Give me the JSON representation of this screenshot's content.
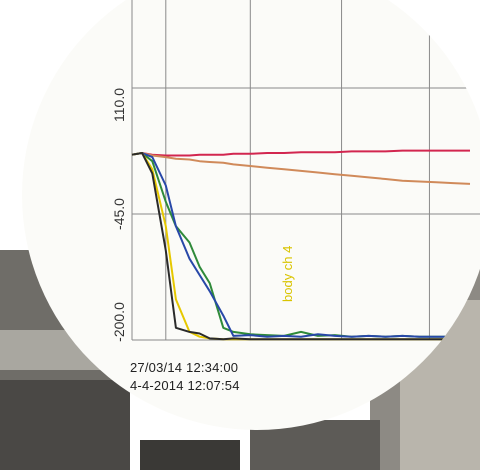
{
  "chart_data": {
    "type": "line",
    "x": [
      0,
      0.03,
      0.06,
      0.1,
      0.13,
      0.17,
      0.2,
      0.23,
      0.27,
      0.3,
      0.35,
      0.4,
      0.45,
      0.5,
      0.55,
      0.6,
      0.65,
      0.7,
      0.75,
      0.8,
      0.85,
      0.9,
      0.95,
      1.0
    ],
    "xlim": [
      0,
      1
    ],
    "y_tick_labels": [
      "110.0",
      "-45.0",
      "-200.0"
    ],
    "ylim": [
      -200,
      110
    ],
    "grid": true,
    "series": [
      {
        "color": "#d2264f",
        "values": [
          28,
          30,
          28,
          27,
          27,
          27,
          28,
          28,
          28,
          29,
          29,
          30,
          30,
          31,
          31,
          31,
          32,
          32,
          32,
          33,
          33,
          33,
          33,
          33
        ]
      },
      {
        "color": "#d08a5a",
        "values": [
          28,
          30,
          27,
          25,
          23,
          22,
          20,
          19,
          18,
          16,
          14,
          12,
          10,
          8,
          6,
          4,
          2,
          0,
          -2,
          -4,
          -5,
          -6,
          -7,
          -8
        ]
      },
      {
        "color": "#2f8a3a",
        "values": [
          28,
          30,
          20,
          -30,
          -60,
          -80,
          -110,
          -130,
          -185,
          -190,
          -193,
          -194,
          -195,
          -190,
          -195,
          -194,
          -196,
          -195,
          -196,
          -195,
          -196,
          -196,
          -196,
          -196
        ]
      },
      {
        "color": "#2848a8",
        "values": [
          28,
          30,
          25,
          -10,
          -60,
          -100,
          -120,
          -140,
          -170,
          -195,
          -194,
          -196,
          -195,
          -196,
          -193,
          -195,
          -196,
          -195,
          -196,
          -195,
          -196,
          -196,
          -196,
          -196
        ]
      },
      {
        "color": "#e6c800",
        "values": [
          28,
          30,
          10,
          -60,
          -150,
          -190,
          -196,
          -198,
          -199,
          -199,
          -199,
          -199,
          -199,
          -199,
          -199,
          -199,
          -199,
          -199,
          -199,
          -199,
          -199,
          -199,
          -199,
          -199
        ]
      },
      {
        "color": "#2a2a2a",
        "values": [
          28,
          30,
          5,
          -90,
          -185,
          -190,
          -192,
          -198,
          -199,
          -198,
          -199,
          -199,
          -199,
          -199,
          -199,
          -199,
          -199,
          -199,
          -199,
          -199,
          -199,
          -199,
          -199,
          -199
        ]
      }
    ],
    "annotation": "body ch 4",
    "timestamps": [
      "27/03/14 12:34:00",
      "4-4-2014  12:07:54"
    ]
  }
}
